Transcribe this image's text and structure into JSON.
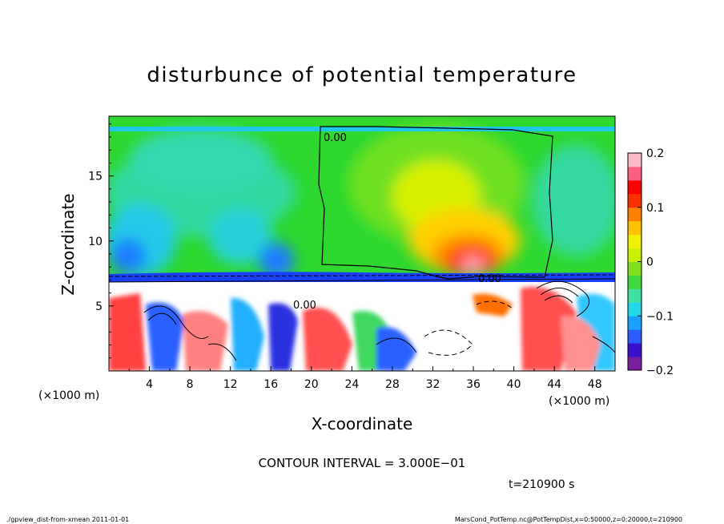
{
  "chart_data": {
    "type": "heatmap",
    "title": "disturbunce of potential temperature",
    "xlabel": "X-coordinate",
    "ylabel": "Z-coordinate",
    "x_unit": "(×1000 m)",
    "x_unit_right": "(×1000 m)",
    "xlim": [
      0,
      50
    ],
    "ylim": [
      0,
      19.6
    ],
    "x_ticks": [
      "4",
      "8",
      "12",
      "16",
      "20",
      "24",
      "28",
      "32",
      "36",
      "40",
      "44",
      "48"
    ],
    "y_ticks": [
      "5",
      "10",
      "15"
    ],
    "colorbar": {
      "range": [
        -0.2,
        0.2
      ],
      "tick_labels": [
        "0.2",
        "0.1",
        "0",
        "−0.1",
        "−0.2"
      ],
      "colors": [
        "#7a1ea0",
        "#3a10d0",
        "#2a5cff",
        "#1aa0ff",
        "#20d8e8",
        "#40e0a0",
        "#40d840",
        "#80e020",
        "#c8f000",
        "#f0f000",
        "#ffc000",
        "#ff8000",
        "#ff3000",
        "#ff0000",
        "#ff6080",
        "#ffb8c8"
      ]
    },
    "contour_label_1": "0.00",
    "contour_label_2": "0.00",
    "contour_label_3": "0.00",
    "contour_interval": "CONTOUR INTERVAL = 3.000E−01",
    "time_label": "t=210900 s",
    "footer_left": "./gpview_dist-from-xmean  2011-01-01",
    "footer_right": "MarsCond_PotTemp.nc@PotTempDist,x=0:50000,z=0:20000,t=210900"
  }
}
